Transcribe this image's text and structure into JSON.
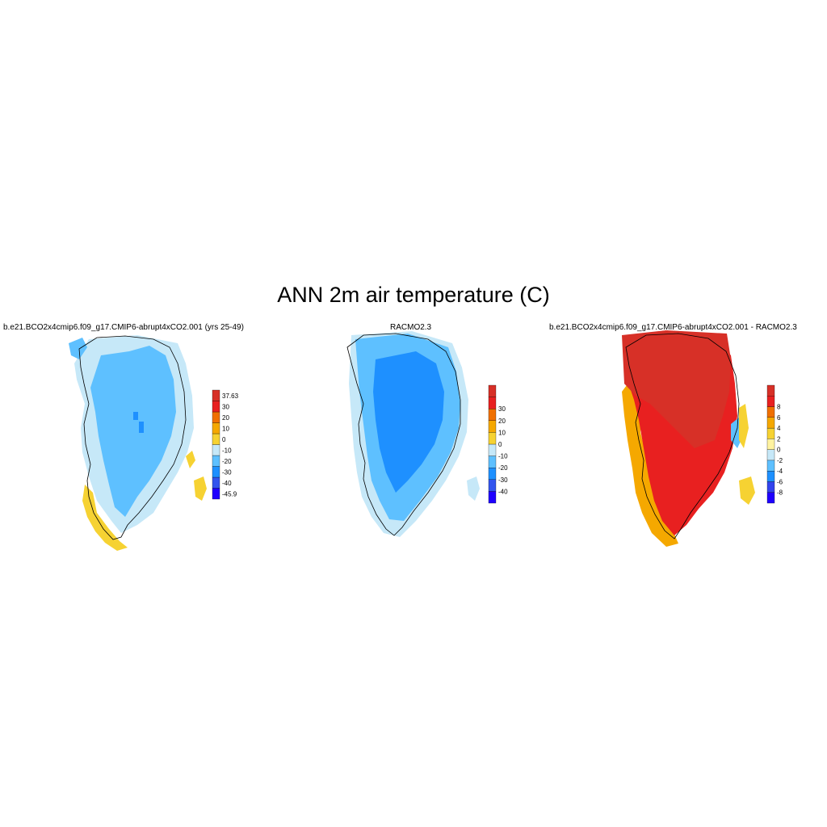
{
  "title": "ANN 2m air temperature (C)",
  "panels": [
    {
      "subtitle": "b.e21.BCO2x4cmip6.f09_g17.CMIP6-abrupt4xCO2.001 (yrs 25-49)",
      "colorbar": {
        "colors": [
          "#1f00ff",
          "#3355ee",
          "#1e90ff",
          "#5ec0ff",
          "#c6e8f8",
          "#f6d232",
          "#f5a800",
          "#f07000",
          "#e82020",
          "#d73027"
        ],
        "labels": [
          "-45.9",
          "-40",
          "-30",
          "-20",
          "-10",
          "0",
          "10",
          "20",
          "30",
          "37.63"
        ]
      }
    },
    {
      "subtitle": "RACMO2.3",
      "colorbar": {
        "colors": [
          "#1f00ff",
          "#3355ee",
          "#1e90ff",
          "#5ec0ff",
          "#c6e8f8",
          "#f6d232",
          "#f5a800",
          "#f07000",
          "#e82020",
          "#d73027"
        ],
        "labels": [
          "-40",
          "-30",
          "-20",
          "-10",
          "0",
          "10",
          "20",
          "30"
        ]
      }
    },
    {
      "subtitle": "b.e21.BCO2x4cmip6.f09_g17.CMIP6-abrupt4xCO2.001 - RACMO2.3",
      "colorbar": {
        "colors": [
          "#1f00ff",
          "#3344ee",
          "#1e90ff",
          "#5ec0ff",
          "#c6e8f8",
          "#fff3a0",
          "#f6d232",
          "#f5a800",
          "#f07000",
          "#e82020",
          "#d73027"
        ],
        "labels": [
          "-8",
          "-6",
          "-4",
          "-2",
          "0",
          "2",
          "4",
          "6",
          "8"
        ]
      }
    }
  ]
}
